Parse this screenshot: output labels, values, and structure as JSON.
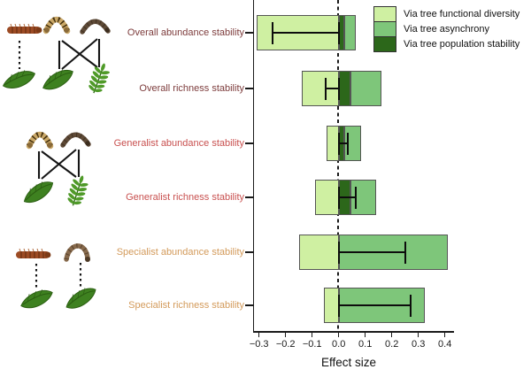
{
  "figure": {
    "legend": [
      {
        "label": "Via tree functional diversity",
        "color": "#cff0a2"
      },
      {
        "label": "Via tree asynchrony",
        "color": "#7ec67a"
      },
      {
        "label": "Via tree population stability",
        "color": "#2c671a"
      }
    ],
    "label_colors": {
      "overall": "#7d3c3c",
      "generalist": "#c8504f",
      "specialist": "#d39a5a"
    }
  },
  "chart_data": {
    "type": "bar",
    "orientation": "horizontal",
    "stacked": true,
    "title": "",
    "xlabel": "Effect size",
    "ylabel": "",
    "xlim": [
      -0.33,
      0.44
    ],
    "grid": false,
    "zero_line": {
      "x": 0,
      "style": "dashed"
    },
    "legend_position": "top-right",
    "x_ticks": [
      {
        "v": -0.3,
        "label": "−0.3"
      },
      {
        "v": -0.2,
        "label": "−0.2"
      },
      {
        "v": -0.1,
        "label": "−0.1"
      },
      {
        "v": 0.0,
        "label": "0.0"
      },
      {
        "v": 0.1,
        "label": "0.1"
      },
      {
        "v": 0.2,
        "label": "0.2"
      },
      {
        "v": 0.3,
        "label": "0.3"
      },
      {
        "v": 0.4,
        "label": "0.4"
      }
    ],
    "categories": [
      "Overall abundance stability",
      "Overall richness stability",
      "Generalist abundance stability",
      "Generalist richness stability",
      "Specialist abundance stability",
      "Specialist richness stability"
    ],
    "rows": [
      {
        "label": "Overall abundance stability",
        "group": "overall",
        "label_color": "#7d3c3c",
        "segments": [
          {
            "series": "Via tree functional diversity",
            "from": -0.31,
            "to": 0.0
          },
          {
            "series": "Via tree population stability",
            "from": 0.0,
            "to": 0.02
          },
          {
            "series": "Via tree asynchrony",
            "from": 0.02,
            "to": 0.065
          }
        ],
        "error_bar": [
          -0.25,
          0.0
        ]
      },
      {
        "label": "Overall richness stability",
        "group": "overall",
        "label_color": "#7d3c3c",
        "segments": [
          {
            "series": "Via tree functional diversity",
            "from": -0.14,
            "to": 0.0
          },
          {
            "series": "Via tree population stability",
            "from": 0.0,
            "to": 0.045
          },
          {
            "series": "Via tree asynchrony",
            "from": 0.045,
            "to": 0.16
          }
        ],
        "error_bar": [
          -0.05,
          0.0
        ]
      },
      {
        "label": "Generalist abundance stability",
        "group": "generalist",
        "label_color": "#c8504f",
        "segments": [
          {
            "series": "Via tree functional diversity",
            "from": -0.045,
            "to": 0.0
          },
          {
            "series": "Via tree population stability",
            "from": 0.0,
            "to": 0.02
          },
          {
            "series": "Via tree asynchrony",
            "from": 0.02,
            "to": 0.085
          }
        ],
        "error_bar": [
          0.0,
          0.035
        ]
      },
      {
        "label": "Generalist richness stability",
        "group": "generalist",
        "label_color": "#c8504f",
        "segments": [
          {
            "series": "Via tree functional diversity",
            "from": -0.09,
            "to": 0.0
          },
          {
            "series": "Via tree population stability",
            "from": 0.0,
            "to": 0.045
          },
          {
            "series": "Via tree asynchrony",
            "from": 0.045,
            "to": 0.14
          }
        ],
        "error_bar": [
          0.0,
          0.065
        ]
      },
      {
        "label": "Specialist abundance stability",
        "group": "specialist",
        "label_color": "#d39a5a",
        "segments": [
          {
            "series": "Via tree functional diversity",
            "from": -0.15,
            "to": 0.0
          },
          {
            "series": "Via tree asynchrony",
            "from": 0.0,
            "to": 0.41
          }
        ],
        "error_bar": [
          0.0,
          0.25
        ]
      },
      {
        "label": "Specialist richness stability",
        "group": "specialist",
        "label_color": "#d39a5a",
        "segments": [
          {
            "series": "Via tree functional diversity",
            "from": -0.055,
            "to": 0.0
          },
          {
            "series": "Via tree asynchrony",
            "from": 0.0,
            "to": 0.325
          }
        ],
        "error_bar": [
          0.0,
          0.27
        ]
      }
    ]
  }
}
